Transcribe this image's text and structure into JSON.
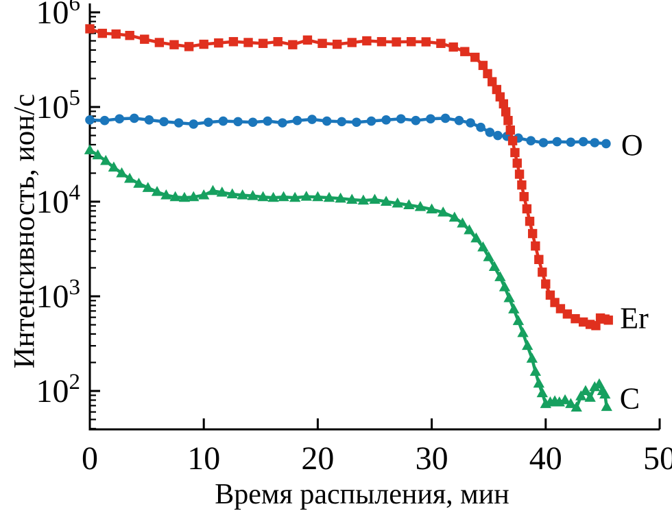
{
  "page": {
    "background": "#ffffff"
  },
  "chart_data": {
    "type": "line",
    "title": "",
    "xlabel": "Время распыления, мин",
    "ylabel": "Интенсивность, ион/с",
    "grid": false,
    "axis_color": "#000000",
    "legend_position": "end-of-line-labels",
    "x_axis": {
      "min": 0,
      "max": 50,
      "ticks": [
        0,
        10,
        20,
        30,
        40,
        50
      ]
    },
    "y_axis": {
      "scale": "log",
      "base_label": "10",
      "tick_exponents": [
        6,
        5,
        4,
        3,
        2
      ],
      "min": 40,
      "max": 1150000
    },
    "series": [
      {
        "name": "O",
        "marker": "circle",
        "color": "#1b76bb",
        "label_offset": [
          22,
          2
        ],
        "points": [
          [
            0,
            73000
          ],
          [
            1.3,
            72000
          ],
          [
            2.6,
            75000
          ],
          [
            3.9,
            76000
          ],
          [
            5.2,
            73000
          ],
          [
            6.5,
            70000
          ],
          [
            7.8,
            68000
          ],
          [
            9.1,
            66000
          ],
          [
            10.4,
            69000
          ],
          [
            11.7,
            71000
          ],
          [
            13.0,
            70000
          ],
          [
            14.3,
            69000
          ],
          [
            15.6,
            71000
          ],
          [
            16.9,
            68000
          ],
          [
            18.2,
            72000
          ],
          [
            19.5,
            74000
          ],
          [
            20.8,
            71000
          ],
          [
            22.1,
            70000
          ],
          [
            23.4,
            69000
          ],
          [
            24.7,
            71000
          ],
          [
            26.0,
            73000
          ],
          [
            27.3,
            75000
          ],
          [
            28.6,
            72000
          ],
          [
            29.9,
            75000
          ],
          [
            31.2,
            76000
          ],
          [
            32.4,
            72000
          ],
          [
            33.4,
            68000
          ],
          [
            34.3,
            61000
          ],
          [
            35.1,
            54000
          ],
          [
            35.8,
            50000
          ],
          [
            36.6,
            49000
          ],
          [
            37.6,
            47000
          ],
          [
            38.7,
            44000
          ],
          [
            39.8,
            42000
          ],
          [
            41.0,
            43000
          ],
          [
            42.2,
            42500
          ],
          [
            43.3,
            43000
          ],
          [
            44.3,
            42000
          ],
          [
            45.3,
            41000
          ]
        ]
      },
      {
        "name": "C",
        "marker": "triangle-up",
        "color": "#16a05f",
        "label_offset": [
          19,
          -12
        ],
        "points": [
          [
            0,
            35000
          ],
          [
            0.7,
            31000
          ],
          [
            1.4,
            27000
          ],
          [
            2.1,
            23000
          ],
          [
            2.8,
            20000
          ],
          [
            3.5,
            17500
          ],
          [
            4.3,
            15500
          ],
          [
            5.1,
            14000
          ],
          [
            5.9,
            12700
          ],
          [
            6.7,
            11700
          ],
          [
            7.5,
            11200
          ],
          [
            8.3,
            11000
          ],
          [
            9.1,
            11200
          ],
          [
            10.0,
            11700
          ],
          [
            10.8,
            13000
          ],
          [
            11.6,
            12500
          ],
          [
            12.5,
            12000
          ],
          [
            13.4,
            11700
          ],
          [
            14.3,
            11500
          ],
          [
            15.2,
            11200
          ],
          [
            16.1,
            11000
          ],
          [
            17.0,
            11200
          ],
          [
            18.0,
            11000
          ],
          [
            19.0,
            11300
          ],
          [
            20.0,
            11200
          ],
          [
            21.0,
            11000
          ],
          [
            22.0,
            10800
          ],
          [
            23.0,
            10500
          ],
          [
            24.0,
            10300
          ],
          [
            25.0,
            10500
          ],
          [
            26.0,
            10000
          ],
          [
            27.0,
            9600
          ],
          [
            28.0,
            9200
          ],
          [
            29.0,
            8800
          ],
          [
            30.0,
            8300
          ],
          [
            31.0,
            7700
          ],
          [
            32.0,
            6800
          ],
          [
            32.7,
            5900
          ],
          [
            33.3,
            5000
          ],
          [
            33.9,
            4100
          ],
          [
            34.5,
            3300
          ],
          [
            35.0,
            2600
          ],
          [
            35.5,
            2050
          ],
          [
            36.0,
            1600
          ],
          [
            36.4,
            1250
          ],
          [
            36.8,
            960
          ],
          [
            37.2,
            730
          ],
          [
            37.6,
            550
          ],
          [
            38.0,
            410
          ],
          [
            38.4,
            300
          ],
          [
            38.8,
            220
          ],
          [
            39.1,
            160
          ],
          [
            39.4,
            120
          ],
          [
            39.7,
            95
          ],
          [
            40.0,
            73
          ],
          [
            40.4,
            76
          ],
          [
            40.8,
            78
          ],
          [
            41.2,
            76
          ],
          [
            41.7,
            80
          ],
          [
            42.2,
            73
          ],
          [
            42.7,
            67
          ],
          [
            43.1,
            88
          ],
          [
            43.5,
            100
          ],
          [
            43.9,
            85
          ],
          [
            44.3,
            110
          ],
          [
            44.7,
            118
          ],
          [
            45.0,
            100
          ],
          [
            45.2,
            92
          ],
          [
            45.35,
            68
          ]
        ]
      },
      {
        "name": "Er",
        "marker": "square",
        "color": "#e0301e",
        "label_offset": [
          17,
          -3
        ],
        "points": [
          [
            0,
            670000
          ],
          [
            1.1,
            600000
          ],
          [
            2.3,
            590000
          ],
          [
            3.5,
            570000
          ],
          [
            4.8,
            520000
          ],
          [
            6.1,
            480000
          ],
          [
            7.4,
            455000
          ],
          [
            8.7,
            435000
          ],
          [
            10.0,
            460000
          ],
          [
            11.3,
            475000
          ],
          [
            12.6,
            490000
          ],
          [
            13.9,
            480000
          ],
          [
            15.2,
            470000
          ],
          [
            16.5,
            490000
          ],
          [
            17.8,
            455000
          ],
          [
            19.1,
            510000
          ],
          [
            20.4,
            470000
          ],
          [
            21.7,
            460000
          ],
          [
            23.0,
            480000
          ],
          [
            24.3,
            500000
          ],
          [
            25.6,
            490000
          ],
          [
            26.9,
            487000
          ],
          [
            28.2,
            490000
          ],
          [
            29.5,
            488000
          ],
          [
            30.8,
            470000
          ],
          [
            31.9,
            430000
          ],
          [
            32.9,
            385000
          ],
          [
            33.8,
            335000
          ],
          [
            34.5,
            275000
          ],
          [
            34.9,
            225000
          ],
          [
            35.3,
            185000
          ],
          [
            35.7,
            153000
          ],
          [
            36.0,
            128000
          ],
          [
            36.3,
            108000
          ],
          [
            36.5,
            89000
          ],
          [
            36.7,
            72000
          ],
          [
            36.9,
            57000
          ],
          [
            37.1,
            44000
          ],
          [
            37.3,
            33000
          ],
          [
            37.5,
            25500
          ],
          [
            37.7,
            19500
          ],
          [
            37.9,
            15000
          ],
          [
            38.1,
            11300
          ],
          [
            38.35,
            8400
          ],
          [
            38.6,
            6200
          ],
          [
            38.85,
            4600
          ],
          [
            39.1,
            3400
          ],
          [
            39.4,
            2450
          ],
          [
            39.7,
            1800
          ],
          [
            40.0,
            1350
          ],
          [
            40.4,
            1030
          ],
          [
            40.8,
            860
          ],
          [
            41.3,
            740
          ],
          [
            41.9,
            650
          ],
          [
            42.6,
            580
          ],
          [
            43.3,
            535
          ],
          [
            43.9,
            505
          ],
          [
            44.4,
            490
          ],
          [
            44.8,
            590
          ],
          [
            45.2,
            575
          ],
          [
            45.5,
            560
          ]
        ]
      }
    ]
  }
}
